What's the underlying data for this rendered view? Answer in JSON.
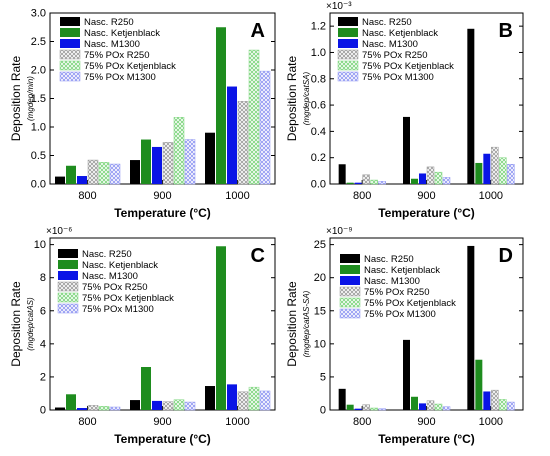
{
  "colors": {
    "s0": "#000000",
    "s1": "#1e8c1e",
    "s2": "#0a14e6",
    "s3_hatch": "#9a9a9a",
    "s4_hatch": "#7fd67f",
    "s5_hatch": "#8f96f2"
  },
  "chart_data": [
    {
      "type": "bar",
      "panel_label": "A",
      "categories": [
        "800",
        "900",
        "1000"
      ],
      "xlabel": "Temperature (°C)",
      "ylabel": "Deposition Rate",
      "ylabel_sub": "(mgdep/min)",
      "exponent": "",
      "ylim": [
        0,
        3.0
      ],
      "yticks": [
        "0.0",
        "0.5",
        "1.0",
        "1.5",
        "2.0",
        "2.5",
        "3.0"
      ],
      "legend_placement": "top-left",
      "series": [
        {
          "name": "Nasc. R250",
          "values": [
            0.13,
            0.42,
            0.9
          ]
        },
        {
          "name": "Nasc. Ketjenblack",
          "values": [
            0.32,
            0.78,
            2.75
          ]
        },
        {
          "name": "Nasc. M1300",
          "values": [
            0.14,
            0.65,
            1.71
          ]
        },
        {
          "name": "75% POx R250",
          "values": [
            0.42,
            0.73,
            1.45
          ]
        },
        {
          "name": "75% POx Ketjenblack",
          "values": [
            0.38,
            1.17,
            2.35
          ]
        },
        {
          "name": "75% POx M1300",
          "values": [
            0.35,
            0.78,
            1.98
          ]
        }
      ]
    },
    {
      "type": "bar",
      "panel_label": "B",
      "categories": [
        "800",
        "900",
        "1000"
      ],
      "xlabel": "Temperature (°C)",
      "ylabel": "Deposition Rate",
      "ylabel_sub": "(mgdep/catSA)",
      "exponent": "×10⁻³",
      "ylim": [
        0,
        1.3
      ],
      "yticks": [
        "0.0",
        "0.2",
        "0.4",
        "0.6",
        "0.8",
        "1.0",
        "1.2"
      ],
      "legend_placement": "top-left",
      "series": [
        {
          "name": "Nasc. R250",
          "values": [
            0.15,
            0.51,
            1.18
          ]
        },
        {
          "name": "Nasc. Ketjenblack",
          "values": [
            0.01,
            0.04,
            0.16
          ]
        },
        {
          "name": "Nasc. M1300",
          "values": [
            0.01,
            0.08,
            0.23
          ]
        },
        {
          "name": "75% POx R250",
          "values": [
            0.07,
            0.13,
            0.28
          ]
        },
        {
          "name": "75% POx Ketjenblack",
          "values": [
            0.03,
            0.09,
            0.2
          ]
        },
        {
          "name": "75% POx M1300",
          "values": [
            0.02,
            0.05,
            0.15
          ]
        }
      ]
    },
    {
      "type": "bar",
      "panel_label": "C",
      "categories": [
        "800",
        "900",
        "1000"
      ],
      "xlabel": "Temperature (°C)",
      "ylabel": "Deposition Rate",
      "ylabel_sub": "(mgdep/catAS)",
      "exponent": "×10⁻⁶",
      "ylim": [
        0,
        10.4
      ],
      "yticks": [
        "0",
        "2",
        "4",
        "6",
        "8",
        "10"
      ],
      "legend_placement": "top-left",
      "series": [
        {
          "name": "Nasc. R250",
          "values": [
            0.15,
            0.6,
            1.45
          ]
        },
        {
          "name": "Nasc. Ketjenblack",
          "values": [
            0.95,
            2.6,
            9.9
          ]
        },
        {
          "name": "Nasc. M1300",
          "values": [
            0.12,
            0.55,
            1.55
          ]
        },
        {
          "name": "75% POx R250",
          "values": [
            0.28,
            0.5,
            1.1
          ]
        },
        {
          "name": "75% POx Ketjenblack",
          "values": [
            0.22,
            0.62,
            1.38
          ]
        },
        {
          "name": "75% POx M1300",
          "values": [
            0.18,
            0.48,
            1.15
          ]
        }
      ]
    },
    {
      "type": "bar",
      "panel_label": "D",
      "categories": [
        "800",
        "900",
        "1000"
      ],
      "xlabel": "Temperature (°C)",
      "ylabel": "Deposition Rate",
      "ylabel_sub": "(mgdep/catAS-SA)",
      "exponent": "×10⁻⁹",
      "ylim": [
        0,
        26
      ],
      "yticks": [
        "0",
        "5",
        "10",
        "15",
        "20",
        "25"
      ],
      "legend_placement": "top-left",
      "series": [
        {
          "name": "Nasc. R250",
          "values": [
            3.2,
            10.6,
            24.8
          ]
        },
        {
          "name": "Nasc. Ketjenblack",
          "values": [
            0.8,
            2.0,
            7.6
          ]
        },
        {
          "name": "Nasc. M1300",
          "values": [
            0.2,
            1.0,
            2.8
          ]
        },
        {
          "name": "75% POx R250",
          "values": [
            0.8,
            1.4,
            3.0
          ]
        },
        {
          "name": "75% POx Ketjenblack",
          "values": [
            0.3,
            0.9,
            1.6
          ]
        },
        {
          "name": "75% POx M1300",
          "values": [
            0.2,
            0.5,
            1.2
          ]
        }
      ]
    }
  ]
}
